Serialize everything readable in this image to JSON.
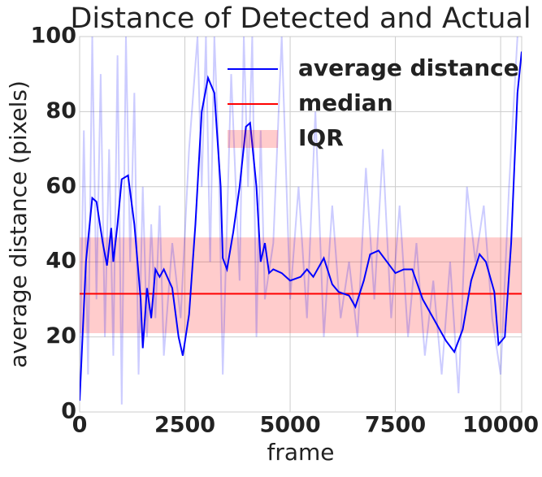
{
  "chart_data": {
    "type": "line",
    "title": "Distance of Detected and Actual",
    "xlabel": "frame",
    "ylabel": "average distance (pixels)",
    "xlim": [
      0,
      10500
    ],
    "ylim": [
      0,
      100
    ],
    "xticks": [
      0,
      2500,
      5000,
      7500,
      10000
    ],
    "yticks": [
      0,
      20,
      40,
      60,
      80,
      100
    ],
    "grid": true,
    "legend": "upper right",
    "raw": {
      "color": "#0000ff",
      "alpha": 0.2,
      "x": [
        0,
        100,
        200,
        300,
        400,
        500,
        600,
        700,
        800,
        900,
        1000,
        1100,
        1200,
        1300,
        1400,
        1500,
        1600,
        1700,
        1800,
        1900,
        2000,
        2200,
        2400,
        2600,
        2800,
        2900,
        3000,
        3100,
        3200,
        3300,
        3400,
        3600,
        3800,
        3900,
        4000,
        4100,
        4200,
        4300,
        4400,
        4600,
        4800,
        5000,
        5200,
        5400,
        5600,
        5800,
        6000,
        6200,
        6400,
        6600,
        6800,
        7000,
        7200,
        7400,
        7600,
        7800,
        8000,
        8200,
        8400,
        8600,
        8800,
        9000,
        9200,
        9400,
        9600,
        9800,
        10000,
        10200,
        10400
      ],
      "values": [
        5,
        75,
        10,
        100,
        30,
        90,
        20,
        70,
        15,
        95,
        2,
        100,
        40,
        85,
        10,
        60,
        20,
        50,
        25,
        55,
        15,
        45,
        25,
        70,
        100,
        60,
        100,
        40,
        100,
        70,
        10,
        90,
        35,
        100,
        60,
        100,
        20,
        75,
        30,
        45,
        100,
        30,
        60,
        25,
        80,
        20,
        55,
        25,
        40,
        20,
        65,
        30,
        70,
        25,
        55,
        20,
        45,
        15,
        35,
        10,
        40,
        5,
        60,
        40,
        55,
        25,
        10,
        60,
        100
      ]
    },
    "x": [
      0,
      150,
      300,
      400,
      550,
      650,
      750,
      800,
      900,
      1000,
      1150,
      1300,
      1450,
      1500,
      1600,
      1700,
      1800,
      1900,
      2000,
      2200,
      2350,
      2450,
      2600,
      2750,
      2900,
      3050,
      3200,
      3350,
      3400,
      3500,
      3650,
      3800,
      3950,
      4050,
      4200,
      4300,
      4400,
      4500,
      4600,
      4800,
      5000,
      5250,
      5400,
      5550,
      5800,
      6000,
      6150,
      6400,
      6550,
      6750,
      6900,
      7100,
      7300,
      7500,
      7700,
      7900,
      8150,
      8450,
      8700,
      8900,
      9100,
      9300,
      9500,
      9650,
      9850,
      9950,
      10100,
      10250,
      10400,
      10500
    ],
    "series": [
      {
        "name": "average distance",
        "color": "#0000ff",
        "values": [
          3,
          40,
          57,
          56,
          45,
          39,
          49,
          40,
          50,
          62,
          63,
          50,
          30,
          17,
          33,
          25,
          38,
          36,
          38,
          33,
          20,
          15,
          26,
          50,
          80,
          89,
          85,
          60,
          41,
          38,
          48,
          60,
          76,
          77,
          60,
          40,
          45,
          37,
          38,
          37,
          35,
          36,
          38,
          36,
          41,
          34,
          32,
          31,
          28,
          35,
          42,
          43,
          40,
          37,
          38,
          38,
          30,
          24,
          19,
          16,
          22,
          35,
          42,
          40,
          32,
          18,
          20,
          45,
          85,
          96
        ]
      }
    ],
    "hlines": [
      {
        "name": "median",
        "color": "#ff0000",
        "value": 31.5
      }
    ],
    "bands": [
      {
        "name": "IQR",
        "color": "#ff0000",
        "alpha": 0.2,
        "range": [
          21,
          46.5
        ]
      }
    ]
  }
}
